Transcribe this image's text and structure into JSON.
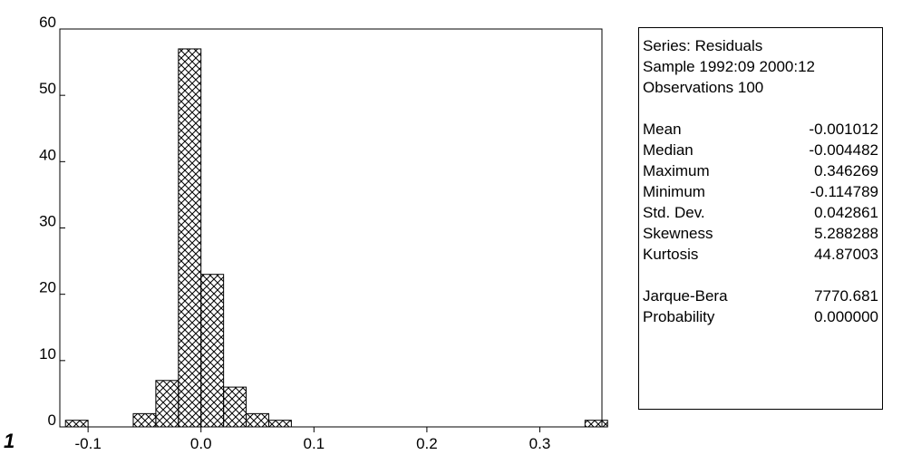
{
  "chart_data": {
    "type": "bar",
    "bin_width": 0.02,
    "bins": [
      {
        "x0": -0.12,
        "x1": -0.1,
        "count": 1
      },
      {
        "x0": -0.1,
        "x1": -0.08,
        "count": 0
      },
      {
        "x0": -0.08,
        "x1": -0.06,
        "count": 0
      },
      {
        "x0": -0.06,
        "x1": -0.04,
        "count": 2
      },
      {
        "x0": -0.04,
        "x1": -0.02,
        "count": 7
      },
      {
        "x0": -0.02,
        "x1": 0.0,
        "count": 57
      },
      {
        "x0": 0.0,
        "x1": 0.02,
        "count": 23
      },
      {
        "x0": 0.02,
        "x1": 0.04,
        "count": 6
      },
      {
        "x0": 0.04,
        "x1": 0.06,
        "count": 2
      },
      {
        "x0": 0.06,
        "x1": 0.08,
        "count": 1
      },
      {
        "x0": 0.08,
        "x1": 0.1,
        "count": 0
      },
      {
        "x0": 0.1,
        "x1": 0.12,
        "count": 0
      },
      {
        "x0": 0.12,
        "x1": 0.14,
        "count": 0
      },
      {
        "x0": 0.14,
        "x1": 0.16,
        "count": 0
      },
      {
        "x0": 0.16,
        "x1": 0.18,
        "count": 0
      },
      {
        "x0": 0.18,
        "x1": 0.2,
        "count": 0
      },
      {
        "x0": 0.2,
        "x1": 0.22,
        "count": 0
      },
      {
        "x0": 0.22,
        "x1": 0.24,
        "count": 0
      },
      {
        "x0": 0.24,
        "x1": 0.26,
        "count": 0
      },
      {
        "x0": 0.26,
        "x1": 0.28,
        "count": 0
      },
      {
        "x0": 0.28,
        "x1": 0.3,
        "count": 0
      },
      {
        "x0": 0.3,
        "x1": 0.32,
        "count": 0
      },
      {
        "x0": 0.32,
        "x1": 0.34,
        "count": 0
      },
      {
        "x0": 0.34,
        "x1": 0.36,
        "count": 1
      }
    ],
    "xlim": [
      -0.125,
      0.355
    ],
    "ylim": [
      0,
      60
    ],
    "x_ticks": [
      {
        "value": -0.1,
        "label": "-0.1"
      },
      {
        "value": 0.0,
        "label": "0.0"
      },
      {
        "value": 0.1,
        "label": "0.1"
      },
      {
        "value": 0.2,
        "label": "0.2"
      },
      {
        "value": 0.3,
        "label": "0.3"
      }
    ],
    "y_ticks": [
      {
        "value": 0,
        "label": "0"
      },
      {
        "value": 10,
        "label": "10"
      },
      {
        "value": 20,
        "label": "20"
      },
      {
        "value": 30,
        "label": "30"
      },
      {
        "value": 40,
        "label": "40"
      },
      {
        "value": 50,
        "label": "50"
      },
      {
        "value": 60,
        "label": "60"
      }
    ],
    "bar_pattern": "crosshatch",
    "grid": false
  },
  "corner_label": "1",
  "stats": {
    "series": "Series: Residuals",
    "sample": "Sample 1992:09 2000:12",
    "observations": "Observations 100",
    "rows1": [
      {
        "label": "Mean",
        "value": "-0.001012"
      },
      {
        "label": "Median",
        "value": "-0.004482"
      },
      {
        "label": "Maximum",
        "value": "0.346269"
      },
      {
        "label": "Minimum",
        "value": "-0.114789"
      },
      {
        "label": "Std. Dev.",
        "value": "0.042861"
      },
      {
        "label": "Skewness",
        "value": "5.288288"
      },
      {
        "label": "Kurtosis",
        "value": "44.87003"
      }
    ],
    "rows2": [
      {
        "label": "Jarque-Bera",
        "value": "7770.681"
      },
      {
        "label": "Probability",
        "value": "0.000000"
      }
    ]
  }
}
